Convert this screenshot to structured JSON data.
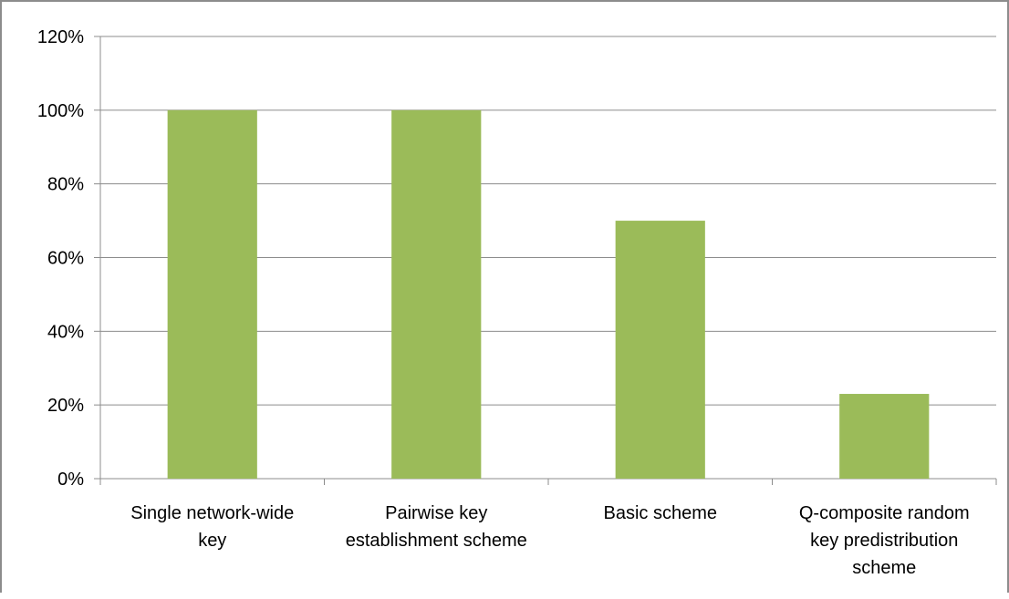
{
  "chart_data": {
    "type": "bar",
    "title": "",
    "xlabel": "",
    "ylabel": "",
    "categories": [
      [
        "Single network-wide",
        "key"
      ],
      [
        "Pairwise key",
        "establishment scheme"
      ],
      [
        "Basic scheme"
      ],
      [
        "Q-composite random",
        "key predistribution",
        "scheme"
      ]
    ],
    "values": [
      100,
      100,
      70,
      23
    ],
    "ylim": [
      0,
      120
    ],
    "yticks": [
      0,
      20,
      40,
      60,
      80,
      100,
      120
    ],
    "ytick_labels": [
      "0%",
      "20%",
      "40%",
      "60%",
      "80%",
      "100%",
      "120%"
    ],
    "grid": true,
    "legend": "none",
    "colors": {
      "bar": "#9bbb59",
      "grid": "#8c8c8c",
      "axis": "#8c8c8c"
    }
  }
}
